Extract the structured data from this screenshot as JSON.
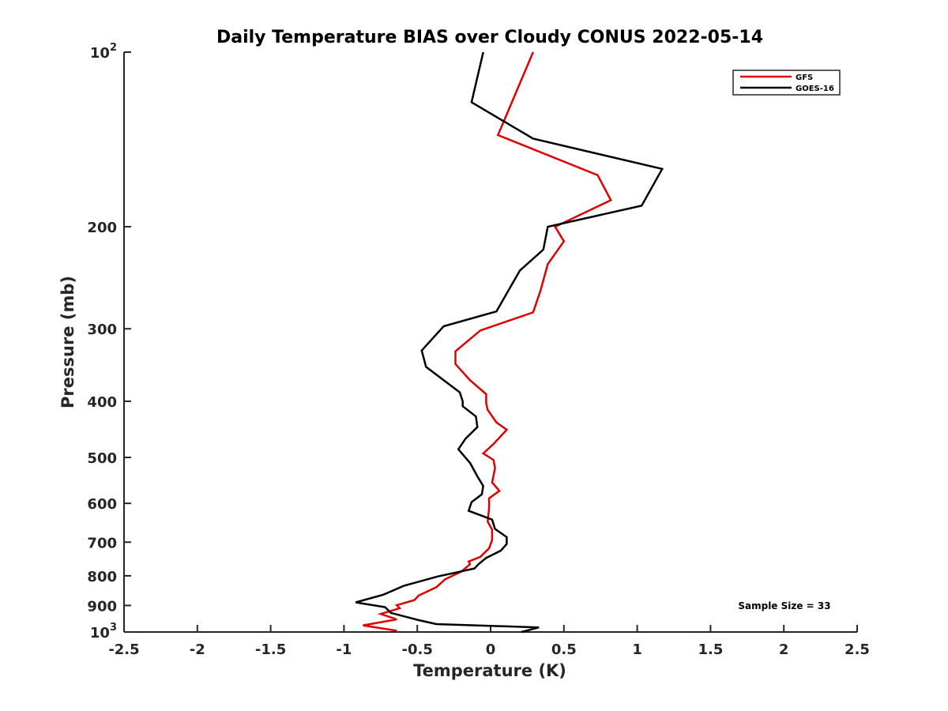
{
  "chart_data": {
    "type": "line",
    "title": "Daily Temperature BIAS over Cloudy CONUS 2022-05-14",
    "xlabel": "Temperature (K)",
    "ylabel": "Pressure (mb)",
    "xlim": [
      -2.5,
      2.5
    ],
    "ylim": [
      100,
      1000
    ],
    "y_scale": "log",
    "y_reversed": true,
    "x_ticks": [
      -2.5,
      -2,
      -1.5,
      -1,
      -0.5,
      0,
      0.5,
      1,
      1.5,
      2,
      2.5
    ],
    "x_tick_labels": [
      "-2.5",
      "-2",
      "-1.5",
      "-1",
      "-0.5",
      "0",
      "0.5",
      "1",
      "1.5",
      "2",
      "2.5"
    ],
    "y_ticks": [
      100,
      200,
      300,
      400,
      500,
      600,
      700,
      800,
      900,
      1000
    ],
    "y_tick_labels": [
      "10^2",
      "200",
      "300",
      "400",
      "500",
      "600",
      "700",
      "800",
      "900",
      "10^3"
    ],
    "grid": false,
    "legend_position": "top-right",
    "annotation": "Sample Size = 33",
    "series": [
      {
        "name": "GFS",
        "color": "#e00000",
        "points": [
          [
            0.29,
            100
          ],
          [
            0.05,
            139
          ],
          [
            0.73,
            163
          ],
          [
            0.82,
            180
          ],
          [
            0.44,
            200
          ],
          [
            0.5,
            212
          ],
          [
            0.39,
            232
          ],
          [
            0.34,
            258
          ],
          [
            0.29,
            281
          ],
          [
            -0.07,
            302
          ],
          [
            -0.24,
            328
          ],
          [
            -0.24,
            345
          ],
          [
            -0.14,
            368
          ],
          [
            -0.03,
            389
          ],
          [
            -0.03,
            403
          ],
          [
            -0.02,
            414
          ],
          [
            0.04,
            435
          ],
          [
            0.11,
            448
          ],
          [
            0.02,
            474
          ],
          [
            -0.05,
            492
          ],
          [
            0.02,
            505
          ],
          [
            0.03,
            522
          ],
          [
            0.01,
            552
          ],
          [
            0.06,
            571
          ],
          [
            -0.01,
            588
          ],
          [
            -0.01,
            611
          ],
          [
            -0.02,
            645
          ],
          [
            0.01,
            666
          ],
          [
            0.01,
            694
          ],
          [
            -0.01,
            717
          ],
          [
            -0.07,
            742
          ],
          [
            -0.15,
            756
          ],
          [
            -0.14,
            764
          ],
          [
            -0.2,
            787
          ],
          [
            -0.31,
            811
          ],
          [
            -0.37,
            837
          ],
          [
            -0.49,
            865
          ],
          [
            -0.52,
            881
          ],
          [
            -0.64,
            899
          ],
          [
            -0.62,
            910
          ],
          [
            -0.75,
            931
          ],
          [
            -0.64,
            951
          ],
          [
            -0.87,
            974
          ],
          [
            -0.64,
            995
          ]
        ]
      },
      {
        "name": "GOES-16",
        "color": "#000000",
        "points": [
          [
            -0.05,
            100
          ],
          [
            -0.13,
            122
          ],
          [
            0.29,
            141
          ],
          [
            1.17,
            159
          ],
          [
            1.03,
            184
          ],
          [
            0.39,
            200
          ],
          [
            0.36,
            219
          ],
          [
            0.2,
            238
          ],
          [
            0.04,
            280
          ],
          [
            -0.32,
            297
          ],
          [
            -0.47,
            327
          ],
          [
            -0.44,
            349
          ],
          [
            -0.21,
            386
          ],
          [
            -0.19,
            400
          ],
          [
            -0.19,
            408
          ],
          [
            -0.1,
            425
          ],
          [
            -0.09,
            443
          ],
          [
            -0.17,
            464
          ],
          [
            -0.22,
            484
          ],
          [
            -0.14,
            511
          ],
          [
            -0.09,
            539
          ],
          [
            -0.05,
            560
          ],
          [
            -0.06,
            579
          ],
          [
            -0.13,
            597
          ],
          [
            -0.15,
            618
          ],
          [
            0.01,
            640
          ],
          [
            0.03,
            664
          ],
          [
            0.11,
            686
          ],
          [
            0.11,
            705
          ],
          [
            0.07,
            724
          ],
          [
            -0.03,
            745
          ],
          [
            -0.08,
            763
          ],
          [
            -0.11,
            777
          ],
          [
            -0.36,
            802
          ],
          [
            -0.59,
            832
          ],
          [
            -0.73,
            862
          ],
          [
            -0.92,
            889
          ],
          [
            -0.72,
            906
          ],
          [
            -0.68,
            927
          ],
          [
            -0.49,
            954
          ],
          [
            -0.37,
            969
          ],
          [
            0.33,
            982
          ],
          [
            0.21,
            1000
          ]
        ]
      }
    ]
  }
}
